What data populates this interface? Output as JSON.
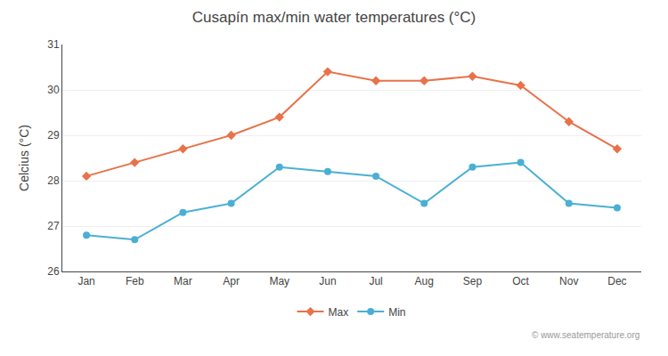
{
  "chart_data": {
    "type": "line",
    "title": "Cusapín max/min water temperatures (°C)",
    "ylabel": "Celcius (°C)",
    "categories": [
      "Jan",
      "Feb",
      "Mar",
      "Apr",
      "May",
      "Jun",
      "Jul",
      "Aug",
      "Sep",
      "Oct",
      "Nov",
      "Dec"
    ],
    "series": [
      {
        "name": "Max",
        "color": "#e8724a",
        "marker": "diamond",
        "values": [
          28.1,
          28.4,
          28.7,
          29.0,
          29.4,
          30.4,
          30.2,
          30.2,
          30.3,
          30.1,
          29.3,
          28.7
        ]
      },
      {
        "name": "Min",
        "color": "#4bafd4",
        "marker": "circle",
        "values": [
          26.8,
          26.7,
          27.3,
          27.5,
          28.3,
          28.2,
          28.1,
          27.5,
          28.3,
          28.4,
          27.5,
          27.4
        ]
      }
    ],
    "ylim": [
      26.0,
      31.0
    ],
    "yticks": [
      26,
      27,
      28,
      29,
      30,
      31
    ],
    "grid": true,
    "legend": "bottom",
    "annotations": [
      "© www.seatemperature.org"
    ]
  }
}
